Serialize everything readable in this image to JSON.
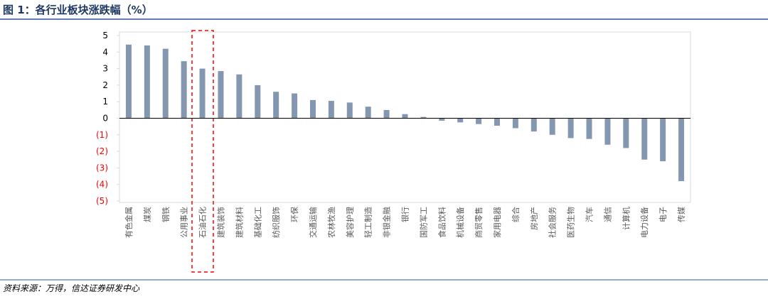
{
  "chart_data": {
    "type": "bar",
    "title": "图 1：各行业板块涨跌幅（%）",
    "source": "资料来源：万得，信达证券研发中心",
    "categories": [
      "有色金属",
      "煤炭",
      "钢铁",
      "公用事业",
      "石油石化",
      "建筑装饰",
      "建筑材料",
      "基础化工",
      "纺织服饰",
      "环保",
      "交通运输",
      "农林牧渔",
      "美容护理",
      "轻工制造",
      "非银金融",
      "银行",
      "国防军工",
      "食品饮料",
      "机械设备",
      "商贸零售",
      "家用电器",
      "综合",
      "房地产",
      "社会服务",
      "医药生物",
      "汽车",
      "通信",
      "计算机",
      "电力设备",
      "电子",
      "传媒"
    ],
    "values": [
      4.45,
      4.4,
      4.2,
      3.45,
      3.0,
      2.85,
      2.65,
      2.0,
      1.6,
      1.5,
      1.1,
      1.05,
      0.95,
      0.7,
      0.5,
      0.25,
      0.08,
      -0.15,
      -0.25,
      -0.35,
      -0.45,
      -0.6,
      -0.8,
      -1.0,
      -1.2,
      -1.25,
      -1.6,
      -1.8,
      -2.5,
      -2.6,
      -3.8
    ],
    "color": "#8497b0",
    "ylim": [
      -5,
      5
    ],
    "yticks": [
      5,
      4,
      3,
      2,
      1,
      0,
      {
        "value": -1,
        "label": "(1)"
      },
      {
        "value": -2,
        "label": "(2)"
      },
      {
        "value": -3,
        "label": "(3)"
      },
      {
        "value": -4,
        "label": "(4)"
      },
      {
        "value": -5,
        "label": "(5)"
      }
    ],
    "negative_tick_color": "#ff0000",
    "grid": false
  }
}
